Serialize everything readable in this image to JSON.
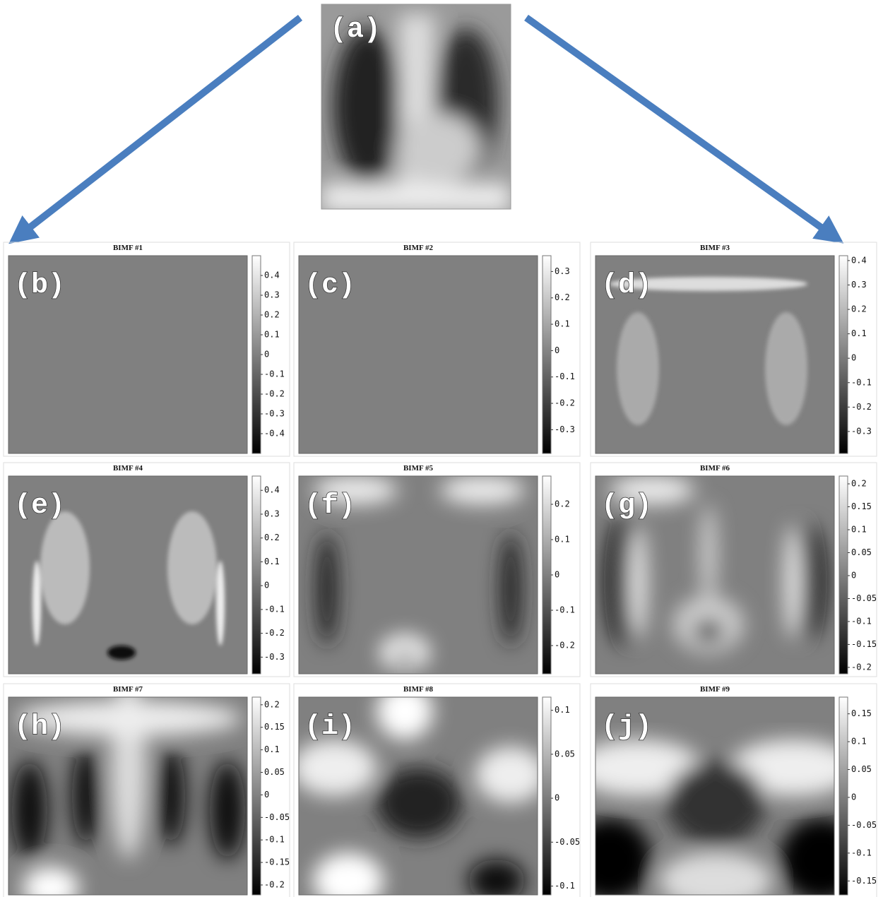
{
  "top_panel": {
    "label": "(a)"
  },
  "panels": [
    {
      "label": "(b)",
      "title": "BIMF #1",
      "clim": [
        -0.5,
        0.5
      ],
      "ticks": [
        0.4,
        0.3,
        0.2,
        0.1,
        0,
        -0.1,
        -0.2,
        -0.3,
        -0.4
      ]
    },
    {
      "label": "(c)",
      "title": "BIMF #2",
      "clim": [
        -0.39,
        0.36
      ],
      "ticks": [
        0.3,
        0.2,
        0.1,
        0,
        -0.1,
        -0.2,
        -0.3
      ]
    },
    {
      "label": "(d)",
      "title": "BIMF #3",
      "clim": [
        -0.39,
        0.42
      ],
      "ticks": [
        0.4,
        0.3,
        0.2,
        0.1,
        0,
        -0.1,
        -0.2,
        -0.3
      ]
    },
    {
      "label": "(e)",
      "title": "BIMF #4",
      "clim": [
        -0.37,
        0.46
      ],
      "ticks": [
        0.4,
        0.3,
        0.2,
        0.1,
        0,
        -0.1,
        -0.2,
        -0.3
      ]
    },
    {
      "label": "(f)",
      "title": "BIMF #5",
      "clim": [
        -0.28,
        0.28
      ],
      "ticks": [
        0.2,
        0.1,
        0,
        -0.1,
        -0.2
      ]
    },
    {
      "label": "(g)",
      "title": "BIMF #6",
      "clim": [
        -0.214,
        0.217
      ],
      "ticks": [
        0.2,
        0.15,
        0.1,
        0.05,
        0,
        -0.05,
        -0.1,
        -0.15,
        -0.2
      ]
    },
    {
      "label": "(h)",
      "title": "BIMF #7",
      "clim": [
        -0.222,
        0.217
      ],
      "ticks": [
        0.2,
        0.15,
        0.1,
        0.05,
        0,
        -0.05,
        -0.1,
        -0.15,
        -0.2
      ]
    },
    {
      "label": "(i)",
      "title": "BIMF #8",
      "clim": [
        -0.11,
        0.115
      ],
      "ticks": [
        0.1,
        0.05,
        0,
        -0.05,
        -0.1
      ]
    },
    {
      "label": "(j)",
      "title": "BIMF #9",
      "clim": [
        -0.175,
        0.18
      ],
      "ticks": [
        0.15,
        0.1,
        0.05,
        0,
        -0.05,
        -0.1,
        -0.15
      ]
    }
  ]
}
